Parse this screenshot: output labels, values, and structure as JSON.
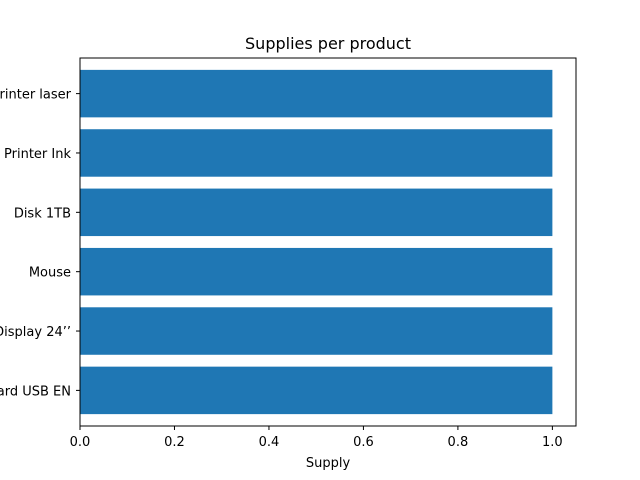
{
  "chart_data": {
    "type": "bar",
    "orientation": "horizontal",
    "title": "Supplies per product",
    "xlabel": "Supply",
    "ylabel": "",
    "categories": [
      "Keyboard USB EN",
      "Display 24’’",
      "Mouse ",
      "Disk 1TB",
      "Printer Ink",
      "Printer laser"
    ],
    "values": [
      1,
      1,
      1,
      1,
      1,
      1
    ],
    "xlim": [
      0,
      1.05
    ],
    "xticks": [
      0.0,
      0.2,
      0.4,
      0.6,
      0.8,
      1.0
    ],
    "xtick_labels": [
      "0.0",
      "0.2",
      "0.4",
      "0.6",
      "0.8",
      "1.0"
    ],
    "grid": false,
    "bar_color": "#1f77b4"
  }
}
